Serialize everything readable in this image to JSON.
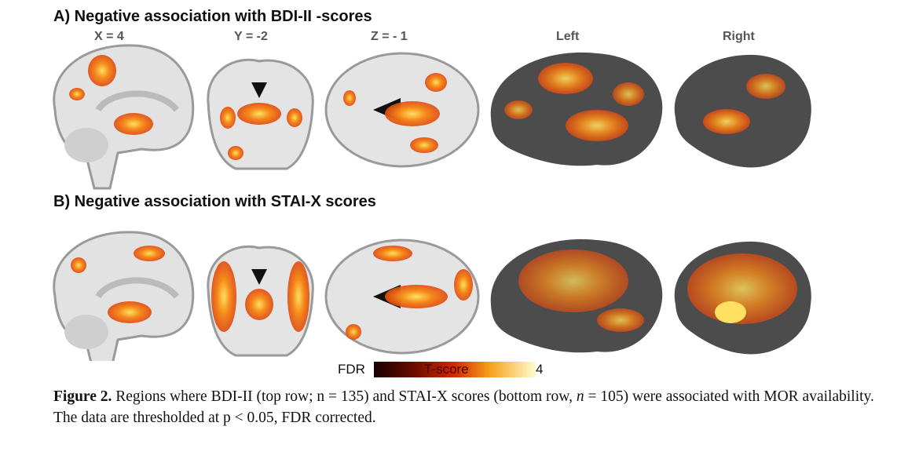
{
  "panel_a": {
    "title": "A) Negative association with BDI-II -scores"
  },
  "panel_b": {
    "title": "B) Negative association with STAI-X scores"
  },
  "view_labels": {
    "x": "X = 4",
    "y": "Y = -2",
    "z": "Z = - 1",
    "left": "Left",
    "right": "Right"
  },
  "colorbar": {
    "min_label": "FDR",
    "center_label": "T-score",
    "max_label": "4",
    "colors": [
      "#1a0000",
      "#d42a00",
      "#fffcd0"
    ]
  },
  "caption": {
    "label": "Figure 2.",
    "text_1": " Regions where BDI-II (top row; n = 135) and STAI-X scores (bottom row, ",
    "n_italic": "n",
    "text_2": " = 105) were associated with MOR availability. The data are thresholded at p < 0.05, FDR corrected."
  }
}
